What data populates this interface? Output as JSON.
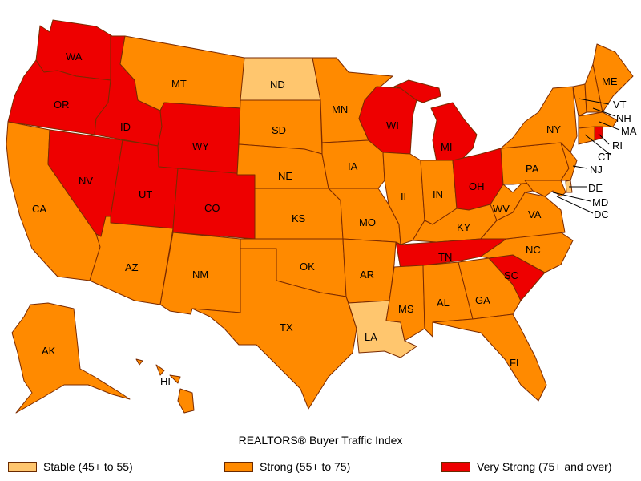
{
  "title": "REALTORS® Buyer Traffic Index",
  "categories": {
    "stable": {
      "label": "Stable (45+ to 55)",
      "color": "#ffc66e"
    },
    "strong": {
      "label": "Strong (55+ to 75)",
      "color": "#ff8a00"
    },
    "very_strong": {
      "label": "Very Strong (75+ and over)",
      "color": "#ee0000"
    }
  },
  "states": {
    "WA": "very_strong",
    "OR": "very_strong",
    "ID": "very_strong",
    "NV": "very_strong",
    "UT": "very_strong",
    "WY": "very_strong",
    "CO": "very_strong",
    "WI": "very_strong",
    "MI": "very_strong",
    "OH": "very_strong",
    "TN": "very_strong",
    "SC": "very_strong",
    "RI": "very_strong",
    "ND": "stable",
    "LA": "stable",
    "DE": "stable",
    "CA": "strong",
    "AZ": "strong",
    "MT": "strong",
    "NM": "strong",
    "SD": "strong",
    "NE": "strong",
    "KS": "strong",
    "OK": "strong",
    "TX": "strong",
    "MN": "strong",
    "IA": "strong",
    "MO": "strong",
    "AR": "strong",
    "IL": "strong",
    "IN": "strong",
    "KY": "strong",
    "MS": "strong",
    "AL": "strong",
    "GA": "strong",
    "FL": "strong",
    "NC": "strong",
    "VA": "strong",
    "WV": "strong",
    "PA": "strong",
    "NY": "strong",
    "NJ": "strong",
    "MD": "strong",
    "DC": "strong",
    "CT": "strong",
    "MA": "strong",
    "VT": "strong",
    "NH": "strong",
    "ME": "strong",
    "AK": "strong",
    "HI": "strong"
  },
  "labels": {
    "WA": "WA",
    "OR": "OR",
    "ID": "ID",
    "NV": "NV",
    "UT": "UT",
    "WY": "WY",
    "CO": "CO",
    "WI": "WI",
    "MI": "MI",
    "OH": "OH",
    "TN": "TN",
    "SC": "SC",
    "RI": "RI",
    "ND": "ND",
    "LA": "LA",
    "DE": "DE",
    "CA": "CA",
    "AZ": "AZ",
    "MT": "MT",
    "NM": "NM",
    "SD": "SD",
    "NE": "NE",
    "KS": "KS",
    "OK": "OK",
    "TX": "TX",
    "MN": "MN",
    "IA": "IA",
    "MO": "MO",
    "AR": "AR",
    "IL": "IL",
    "IN": "IN",
    "KY": "KY",
    "MS": "MS",
    "AL": "AL",
    "GA": "GA",
    "FL": "FL",
    "NC": "NC",
    "VA": "VA",
    "WV": "WV",
    "PA": "PA",
    "NY": "NY",
    "NJ": "NJ",
    "MD": "MD",
    "DC": "DC",
    "CT": "CT",
    "MA": "MA",
    "VT": "VT",
    "NH": "NH",
    "ME": "ME",
    "AK": "AK",
    "HI": "HI"
  }
}
